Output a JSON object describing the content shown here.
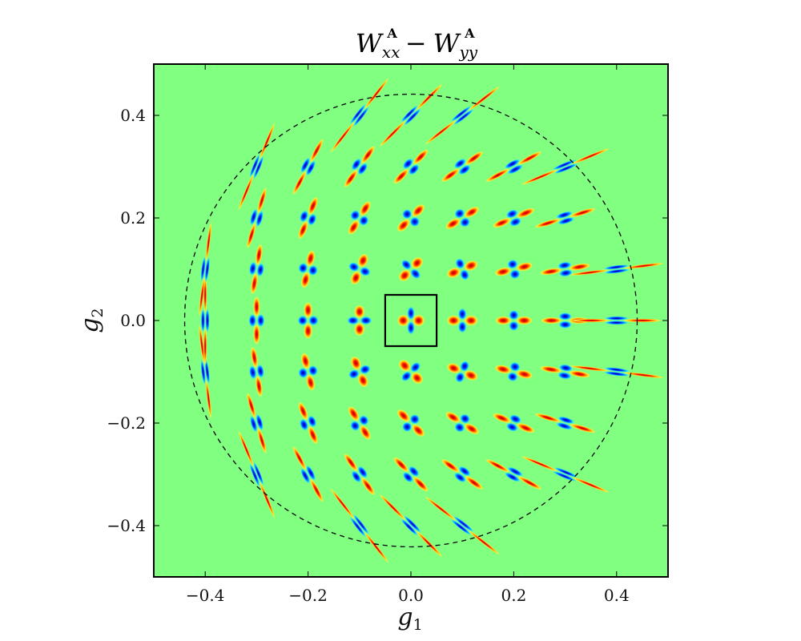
{
  "chart_data": {
    "type": "heatmap",
    "title": {
      "main": "W",
      "sub1": "xx",
      "minus": "−",
      "sub2": "yy",
      "sup": "A"
    },
    "xlabel": {
      "base": "g",
      "sub": "1"
    },
    "ylabel": {
      "base": "g",
      "sub": "2"
    },
    "xlim": [
      -0.5,
      0.5
    ],
    "ylim": [
      -0.5,
      0.5
    ],
    "xticks": [
      -0.4,
      -0.2,
      0.0,
      0.2,
      0.4
    ],
    "yticks": [
      -0.4,
      -0.2,
      0.0,
      0.2,
      0.4
    ],
    "xtick_labels": [
      "−0.4",
      "−0.2",
      "0.0",
      "0.2",
      "0.4"
    ],
    "ytick_labels": [
      "−0.4",
      "−0.2",
      "0.0",
      "0.2",
      "0.4"
    ],
    "grid": false,
    "grid_spacing": 0.1,
    "circle_radius": 0.44,
    "highlight_box": [
      -0.05,
      -0.05,
      0.05,
      0.05
    ],
    "colors": {
      "background": "#80ff80",
      "positive": "#d90000",
      "positive_edge": "#ffd800",
      "negative": "#0012d8",
      "negative_edge": "#00c8ff"
    }
  }
}
